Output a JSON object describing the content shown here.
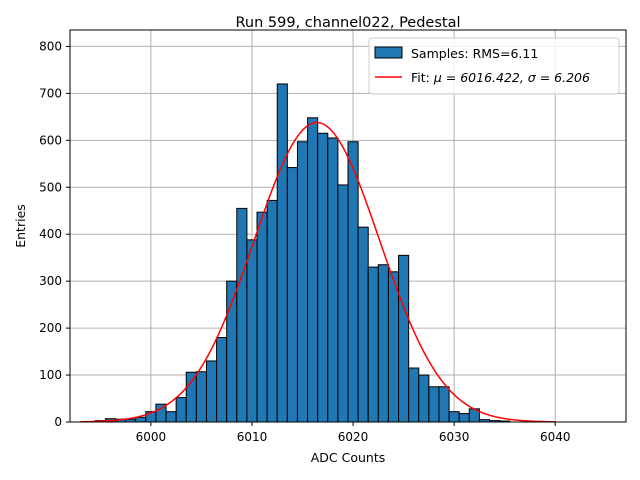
{
  "chart_data": {
    "type": "bar",
    "title": "Run 599, channel022, Pedestal",
    "xlabel": "ADC Counts",
    "ylabel": "Entries",
    "xlim": [
      5992,
      6047
    ],
    "ylim": [
      0,
      835
    ],
    "xticks": [
      6000,
      6010,
      6020,
      6030,
      6040
    ],
    "yticks": [
      0,
      100,
      200,
      300,
      400,
      500,
      600,
      700,
      800
    ],
    "grid": true,
    "legend_position": "top-right",
    "bin_width": 1,
    "histogram": {
      "name": "Samples: RMS=6.11",
      "color": "#1f77b4",
      "bin_centers": [
        5995,
        5996,
        5997,
        5998,
        5999,
        6000,
        6001,
        6002,
        6003,
        6004,
        6005,
        6006,
        6007,
        6008,
        6009,
        6010,
        6011,
        6012,
        6013,
        6014,
        6015,
        6016,
        6017,
        6018,
        6019,
        6020,
        6021,
        6022,
        6023,
        6024,
        6025,
        6026,
        6027,
        6028,
        6029,
        6030,
        6031,
        6032,
        6033,
        6034,
        6035
      ],
      "counts": [
        3,
        7,
        6,
        6,
        10,
        22,
        38,
        22,
        52,
        106,
        107,
        130,
        180,
        300,
        455,
        388,
        447,
        472,
        720,
        542,
        597,
        648,
        615,
        605,
        505,
        597,
        415,
        330,
        335,
        320,
        355,
        115,
        100,
        75,
        75,
        22,
        18,
        28,
        5,
        3,
        2
      ]
    },
    "fit": {
      "name_prefix": "Fit: ",
      "name_formula": "μ = 6016.422, σ = 6.206",
      "color": "#ff0000",
      "mu": 6016.422,
      "sigma": 6.206,
      "amplitude": 638,
      "x_range": [
        5993,
        6040
      ]
    }
  }
}
